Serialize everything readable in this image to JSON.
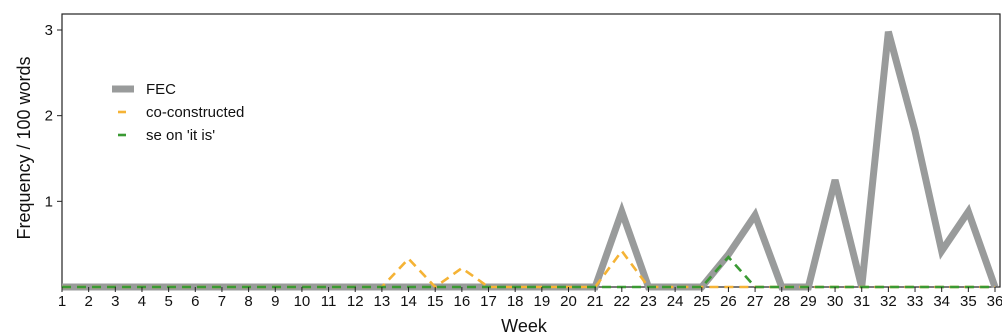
{
  "chart_data": {
    "type": "line",
    "xlabel": "Week",
    "ylabel": "Frequency / 100 words",
    "xlim": [
      1,
      36
    ],
    "ylim": [
      0,
      3
    ],
    "x": [
      1,
      2,
      3,
      4,
      5,
      6,
      7,
      8,
      9,
      10,
      11,
      12,
      13,
      14,
      15,
      16,
      17,
      18,
      19,
      20,
      21,
      22,
      23,
      24,
      25,
      26,
      27,
      28,
      29,
      30,
      31,
      32,
      33,
      34,
      35,
      36
    ],
    "x_ticks": [
      "1",
      "2",
      "3",
      "4",
      "5",
      "6",
      "7",
      "8",
      "9",
      "10",
      "11",
      "12",
      "13",
      "14",
      "15",
      "16",
      "17",
      "18",
      "19",
      "20",
      "21",
      "22",
      "23",
      "24",
      "25",
      "26",
      "27",
      "28",
      "29",
      "30",
      "31",
      "32",
      "33",
      "34",
      "35",
      "36"
    ],
    "y_ticks": [
      "1",
      "2",
      "3"
    ],
    "y_tick_values": [
      1,
      2,
      3
    ],
    "grid": false,
    "legend_position": "upper-left",
    "series": [
      {
        "name": "FEC",
        "color": "#999b9b",
        "style": "solid",
        "values": [
          0,
          0,
          0,
          0,
          0,
          0,
          0,
          0,
          0,
          0,
          0,
          0,
          0,
          0,
          0,
          0,
          0,
          0,
          0,
          0,
          0,
          0.88,
          0,
          0,
          0,
          0.38,
          0.84,
          0,
          0,
          1.25,
          0,
          2.98,
          1.82,
          0.42,
          0.88,
          0
        ]
      },
      {
        "name": "co-constructed",
        "color": "#f5b335",
        "style": "dashed",
        "values": [
          0,
          0,
          0,
          0,
          0,
          0,
          0,
          0,
          0,
          0,
          0,
          0,
          0,
          0.33,
          0,
          0.22,
          0,
          0,
          0,
          0,
          0,
          0.42,
          0,
          0,
          0,
          0,
          0,
          0,
          0,
          0,
          0,
          0,
          0,
          0,
          0,
          0
        ]
      },
      {
        "name": "se on 'it is'",
        "color": "#3a9a33",
        "style": "dashed",
        "values": [
          0,
          0,
          0,
          0,
          0,
          0,
          0,
          0,
          0,
          0,
          0,
          0,
          0,
          0,
          0,
          0,
          0,
          0,
          0,
          0,
          0,
          0,
          0,
          0,
          0,
          0.35,
          0,
          0,
          0,
          0,
          0,
          0,
          0,
          0,
          0,
          0
        ]
      }
    ]
  }
}
